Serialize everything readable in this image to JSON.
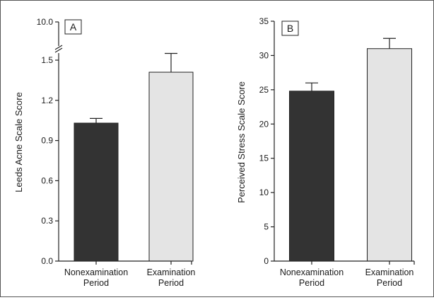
{
  "chart_data": [
    {
      "type": "bar",
      "panel": "A",
      "categories": [
        "Nonexamination|Period",
        "Examination|Period"
      ],
      "values": [
        1.03,
        1.41
      ],
      "errors": [
        0.035,
        0.14
      ],
      "colors": [
        "#333333",
        "#e4e4e4"
      ],
      "title": "",
      "xlabel": "",
      "ylabel": "Leeds Acne Scale Score",
      "ylim": [
        0,
        1.5
      ],
      "yticks": [
        0.0,
        0.3,
        0.6,
        0.9,
        1.2,
        1.5
      ],
      "ytick_labels": [
        "0.0",
        "0.3",
        "0.6",
        "0.9",
        "1.2",
        "1.5"
      ],
      "axis_break": true,
      "break_top_label": "10.0",
      "grid": false
    },
    {
      "type": "bar",
      "panel": "B",
      "categories": [
        "Nonexamination|Period",
        "Examination|Period"
      ],
      "values": [
        24.8,
        31.0
      ],
      "errors": [
        1.2,
        1.5
      ],
      "colors": [
        "#333333",
        "#e4e4e4"
      ],
      "title": "",
      "xlabel": "",
      "ylabel": "Perceived Stress Scale Score",
      "ylim": [
        0,
        35
      ],
      "yticks": [
        0,
        5,
        10,
        15,
        20,
        25,
        30,
        35
      ],
      "ytick_labels": [
        "0",
        "5",
        "10",
        "15",
        "20",
        "25",
        "30",
        "35"
      ],
      "axis_break": false,
      "grid": false
    }
  ]
}
